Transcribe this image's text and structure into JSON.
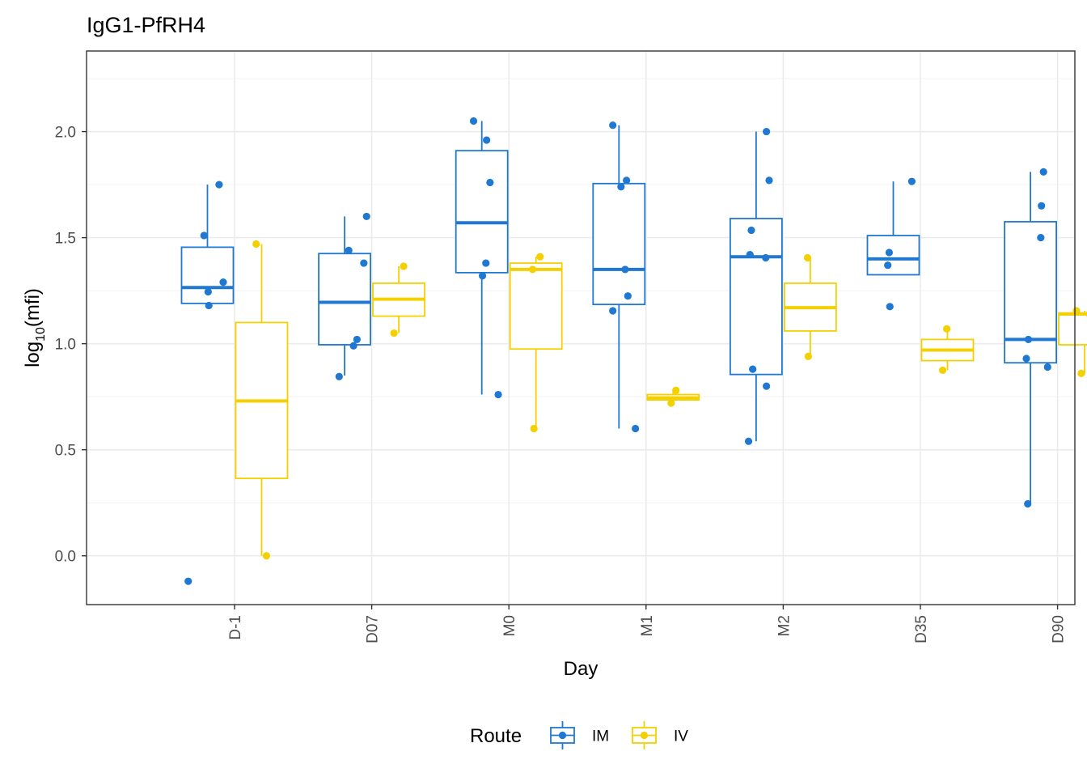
{
  "chart_data": {
    "type": "box",
    "title": "IgG1-PfRH4",
    "xlabel": "Day",
    "ylabel": "log10(mfi)",
    "ylabel_base": "log",
    "ylabel_sub": "10",
    "ylabel_arg": "(mfi)",
    "ylim": [
      -0.23,
      2.38
    ],
    "yticks": [
      0.0,
      0.5,
      1.0,
      1.5,
      2.0
    ],
    "ytick_labels": [
      "0.0",
      "0.5",
      "1.0",
      "1.5",
      "2.0"
    ],
    "grid": true,
    "categories": [
      "D-1",
      "D07",
      "M0",
      "M1",
      "M2",
      "D35",
      "D90"
    ],
    "legend": {
      "title": "Route",
      "position": "bottom",
      "entries": [
        {
          "name": "IM",
          "color": "#1f78d1"
        },
        {
          "name": "IV",
          "color": "#f5d000"
        }
      ]
    },
    "series": [
      {
        "name": "IM",
        "color": "#1f78d1",
        "boxes": [
          {
            "category": "D-1",
            "q1": 1.19,
            "median": 1.265,
            "q3": 1.455,
            "lower": 1.19,
            "upper": 1.75
          },
          {
            "category": "D07",
            "q1": 0.995,
            "median": 1.195,
            "q3": 1.425,
            "lower": 0.85,
            "upper": 1.6
          },
          {
            "category": "M0",
            "q1": 1.335,
            "median": 1.57,
            "q3": 1.91,
            "lower": 0.76,
            "upper": 2.05
          },
          {
            "category": "M1",
            "q1": 1.185,
            "median": 1.35,
            "q3": 1.755,
            "lower": 0.6,
            "upper": 2.03
          },
          {
            "category": "M2",
            "q1": 0.855,
            "median": 1.41,
            "q3": 1.59,
            "lower": 0.54,
            "upper": 2.0
          },
          {
            "category": "D35",
            "q1": 1.325,
            "median": 1.4,
            "q3": 1.51,
            "lower": 1.325,
            "upper": 1.765
          },
          {
            "category": "D90",
            "q1": 0.91,
            "median": 1.02,
            "q3": 1.575,
            "lower": 0.245,
            "upper": 1.81
          }
        ],
        "points": [
          {
            "category": "D-1",
            "y": 1.51,
            "jitter": -0.05
          },
          {
            "category": "D-1",
            "y": 1.75,
            "jitter": 0.17
          },
          {
            "category": "D-1",
            "y": 1.245,
            "jitter": 0.01
          },
          {
            "category": "D-1",
            "y": 1.29,
            "jitter": 0.23
          },
          {
            "category": "D-1",
            "y": 1.18,
            "jitter": 0.02
          },
          {
            "category": "D-1",
            "y": -0.12,
            "jitter": -0.28
          },
          {
            "category": "D07",
            "y": 1.44,
            "jitter": 0.06
          },
          {
            "category": "D07",
            "y": 1.6,
            "jitter": 0.32
          },
          {
            "category": "D07",
            "y": 1.38,
            "jitter": 0.28
          },
          {
            "category": "D07",
            "y": 1.02,
            "jitter": 0.18
          },
          {
            "category": "D07",
            "y": 0.99,
            "jitter": 0.13
          },
          {
            "category": "D07",
            "y": 0.845,
            "jitter": -0.08
          },
          {
            "category": "M0",
            "y": 2.05,
            "jitter": -0.12
          },
          {
            "category": "M0",
            "y": 1.96,
            "jitter": 0.07
          },
          {
            "category": "M0",
            "y": 1.76,
            "jitter": 0.12
          },
          {
            "category": "M0",
            "y": 1.38,
            "jitter": 0.06
          },
          {
            "category": "M0",
            "y": 1.32,
            "jitter": 0.01
          },
          {
            "category": "M0",
            "y": 0.76,
            "jitter": 0.24
          },
          {
            "category": "M1",
            "y": 2.03,
            "jitter": -0.09
          },
          {
            "category": "M1",
            "y": 1.77,
            "jitter": 0.11
          },
          {
            "category": "M1",
            "y": 1.74,
            "jitter": 0.03
          },
          {
            "category": "M1",
            "y": 1.35,
            "jitter": 0.09
          },
          {
            "category": "M1",
            "y": 1.225,
            "jitter": 0.13
          },
          {
            "category": "M1",
            "y": 1.155,
            "jitter": -0.09
          },
          {
            "category": "M1",
            "y": 0.6,
            "jitter": 0.24
          },
          {
            "category": "M2",
            "y": 2.0,
            "jitter": 0.15
          },
          {
            "category": "M2",
            "y": 1.77,
            "jitter": 0.19
          },
          {
            "category": "M2",
            "y": 1.535,
            "jitter": -0.07
          },
          {
            "category": "M2",
            "y": 1.42,
            "jitter": -0.09
          },
          {
            "category": "M2",
            "y": 1.405,
            "jitter": 0.14
          },
          {
            "category": "M2",
            "y": 0.88,
            "jitter": -0.05
          },
          {
            "category": "M2",
            "y": 0.8,
            "jitter": 0.15
          },
          {
            "category": "M2",
            "y": 0.54,
            "jitter": -0.11
          },
          {
            "category": "D35",
            "y": 1.765,
            "jitter": 0.27
          },
          {
            "category": "D35",
            "y": 1.43,
            "jitter": -0.06
          },
          {
            "category": "D35",
            "y": 1.37,
            "jitter": -0.08
          },
          {
            "category": "D35",
            "y": 1.175,
            "jitter": -0.05
          },
          {
            "category": "D90",
            "y": 1.81,
            "jitter": 0.19
          },
          {
            "category": "D90",
            "y": 1.65,
            "jitter": 0.16
          },
          {
            "category": "D90",
            "y": 1.5,
            "jitter": 0.15
          },
          {
            "category": "D90",
            "y": 1.02,
            "jitter": -0.03
          },
          {
            "category": "D90",
            "y": 0.93,
            "jitter": -0.06
          },
          {
            "category": "D90",
            "y": 0.89,
            "jitter": 0.25
          },
          {
            "category": "D90",
            "y": 0.245,
            "jitter": -0.04
          }
        ]
      },
      {
        "name": "IV",
        "color": "#f5d000",
        "boxes": [
          {
            "category": "D-1",
            "q1": 0.365,
            "median": 0.73,
            "q3": 1.1,
            "lower": 0.0,
            "upper": 1.47
          },
          {
            "category": "D07",
            "q1": 1.13,
            "median": 1.21,
            "q3": 1.285,
            "lower": 1.05,
            "upper": 1.365
          },
          {
            "category": "M0",
            "q1": 0.975,
            "median": 1.35,
            "q3": 1.38,
            "lower": 0.6,
            "upper": 1.41
          },
          {
            "category": "M1",
            "q1": 0.735,
            "median": 0.745,
            "q3": 0.76,
            "lower": 0.72,
            "upper": 0.78
          },
          {
            "category": "M2",
            "q1": 1.06,
            "median": 1.17,
            "q3": 1.285,
            "lower": 0.94,
            "upper": 1.405
          },
          {
            "category": "D35",
            "q1": 0.92,
            "median": 0.97,
            "q3": 1.02,
            "lower": 0.875,
            "upper": 1.07
          },
          {
            "category": "D90",
            "q1": 0.995,
            "median": 1.14,
            "q3": 1.145,
            "lower": 0.86,
            "upper": 1.155
          }
        ],
        "points": [
          {
            "category": "D-1",
            "y": 1.47,
            "jitter": -0.08
          },
          {
            "category": "D-1",
            "y": 0.0,
            "jitter": 0.07
          },
          {
            "category": "D07",
            "y": 1.365,
            "jitter": 0.07
          },
          {
            "category": "D07",
            "y": 1.05,
            "jitter": -0.07
          },
          {
            "category": "M0",
            "y": 1.41,
            "jitter": 0.06
          },
          {
            "category": "M0",
            "y": 1.35,
            "jitter": -0.05
          },
          {
            "category": "M0",
            "y": 0.6,
            "jitter": -0.03
          },
          {
            "category": "M1",
            "y": 0.78,
            "jitter": 0.04
          },
          {
            "category": "M1",
            "y": 0.72,
            "jitter": -0.03
          },
          {
            "category": "M2",
            "y": 1.405,
            "jitter": -0.04
          },
          {
            "category": "M2",
            "y": 0.94,
            "jitter": -0.03
          },
          {
            "category": "D35",
            "y": 1.07,
            "jitter": -0.01
          },
          {
            "category": "D35",
            "y": 0.875,
            "jitter": -0.07
          },
          {
            "category": "D90",
            "y": 1.155,
            "jitter": -0.12
          },
          {
            "category": "D90",
            "y": 1.14,
            "jitter": 0.07
          },
          {
            "category": "D90",
            "y": 0.86,
            "jitter": -0.05
          }
        ]
      }
    ]
  }
}
